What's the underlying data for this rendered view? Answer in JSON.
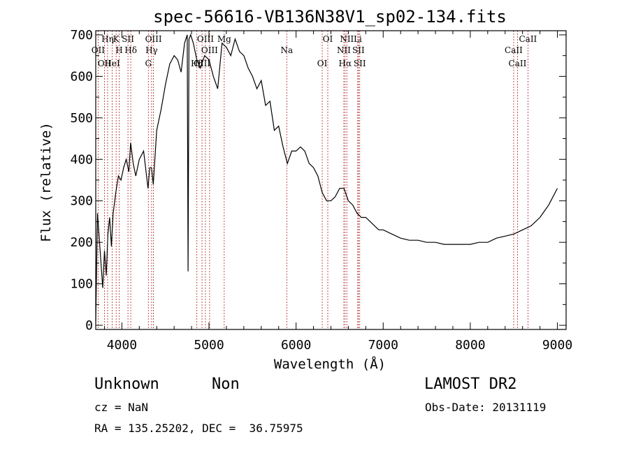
{
  "chart_data": {
    "type": "line",
    "title": "spec-56616-VB136N38V1_sp02-134.fits",
    "xlabel": "Wavelength (Å)",
    "ylabel": "Flux (relative)",
    "xlim": [
      3700,
      9100
    ],
    "ylim": [
      -10,
      710
    ],
    "xticks": [
      4000,
      5000,
      6000,
      7000,
      8000,
      9000
    ],
    "yticks": [
      0,
      100,
      200,
      300,
      400,
      500,
      600,
      700
    ],
    "grid": false,
    "series": [
      {
        "x": [
          3700,
          3720,
          3740,
          3760,
          3780,
          3800,
          3820,
          3840,
          3860,
          3880,
          3900,
          3930,
          3960,
          3990,
          4020,
          4050,
          4080,
          4100,
          4130,
          4160,
          4200,
          4250,
          4300,
          4320,
          4340,
          4360,
          4400,
          4450,
          4500,
          4550,
          4600,
          4640,
          4680,
          4720,
          4750,
          4760,
          4770,
          4790,
          4820,
          4860,
          4900,
          4950,
          5000,
          5050,
          5100,
          5150,
          5200,
          5250,
          5300,
          5350,
          5400,
          5450,
          5500,
          5550,
          5600,
          5650,
          5700,
          5750,
          5800,
          5850,
          5900,
          5950,
          6000,
          6050,
          6100,
          6150,
          6200,
          6250,
          6300,
          6350,
          6400,
          6450,
          6500,
          6550,
          6600,
          6650,
          6700,
          6750,
          6800,
          6850,
          6900,
          6950,
          7000,
          7100,
          7200,
          7300,
          7400,
          7500,
          7600,
          7700,
          7800,
          7900,
          8000,
          8100,
          8200,
          8300,
          8400,
          8500,
          8550,
          8600,
          8650,
          8700,
          8750,
          8800,
          8850,
          8900,
          8950,
          9000
        ],
        "values": [
          10,
          270,
          210,
          150,
          90,
          180,
          120,
          220,
          260,
          190,
          270,
          320,
          360,
          350,
          380,
          400,
          370,
          440,
          390,
          360,
          400,
          420,
          330,
          380,
          380,
          340,
          470,
          520,
          580,
          630,
          650,
          640,
          610,
          680,
          700,
          130,
          690,
          700,
          680,
          640,
          620,
          650,
          640,
          600,
          570,
          680,
          670,
          650,
          690,
          660,
          650,
          620,
          600,
          570,
          590,
          530,
          540,
          470,
          480,
          430,
          390,
          420,
          420,
          430,
          420,
          390,
          380,
          360,
          320,
          300,
          300,
          310,
          330,
          330,
          300,
          290,
          270,
          260,
          260,
          250,
          240,
          230,
          230,
          220,
          210,
          205,
          205,
          200,
          200,
          195,
          195,
          195,
          195,
          200,
          200,
          210,
          215,
          220,
          225,
          230,
          235,
          240,
          250,
          260,
          275,
          290,
          310,
          330
        ]
      }
    ]
  },
  "annotations": {
    "lines": [
      {
        "label": "Hη",
        "x": 3836
      },
      {
        "label": "OII",
        "x": 3727
      },
      {
        "label": "OII",
        "x": 3800
      },
      {
        "label": "K",
        "x": 3934
      },
      {
        "label": "H",
        "x": 3969
      },
      {
        "label": "HeI",
        "x": 3889
      },
      {
        "label": "SII",
        "x": 4070
      },
      {
        "label": "Hδ",
        "x": 4102
      },
      {
        "label": "G",
        "x": 4304
      },
      {
        "label": "OIII",
        "x": 4363
      },
      {
        "label": "Hγ",
        "x": 4341
      },
      {
        "label": "Hβ",
        "x": 4861
      },
      {
        "label": "OIII",
        "x": 4959
      },
      {
        "label": "OIII",
        "x": 5007
      },
      {
        "label": "OIII",
        "x": 4920
      },
      {
        "label": "Mg",
        "x": 5175
      },
      {
        "label": "Na",
        "x": 5893
      },
      {
        "label": "OI",
        "x": 6300
      },
      {
        "label": "OI",
        "x": 6364
      },
      {
        "label": "NII",
        "x": 6548
      },
      {
        "label": "Hα",
        "x": 6563
      },
      {
        "label": "NII",
        "x": 6583
      },
      {
        "label": "SII",
        "x": 6716
      },
      {
        "label": "SII",
        "x": 6731
      },
      {
        "label": "Li",
        "x": 6708
      },
      {
        "label": "CaII",
        "x": 8498
      },
      {
        "label": "CaII",
        "x": 8542
      },
      {
        "label": "CaII",
        "x": 8662
      }
    ]
  },
  "info": {
    "class": "Unknown",
    "subclass": "Non",
    "survey": "LAMOST DR2",
    "cz": "cz = NaN",
    "obs_date": "Obs-Date: 20131119",
    "coords": "RA = 135.25202, DEC =  36.75975"
  }
}
